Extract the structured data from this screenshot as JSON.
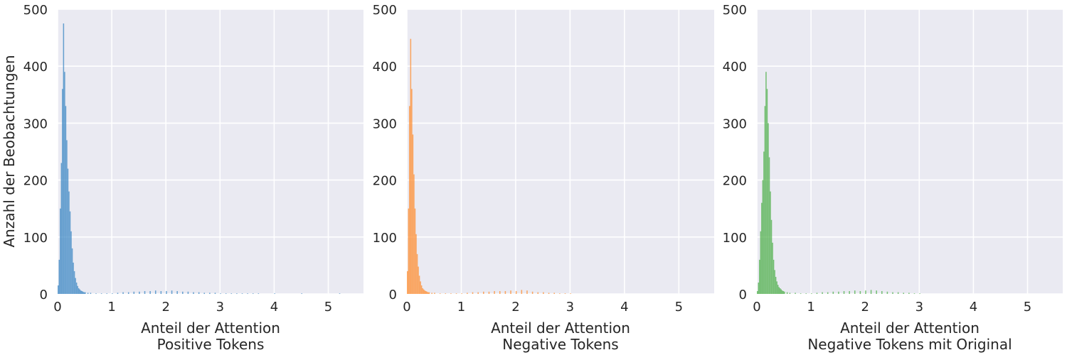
{
  "figure": {
    "ylabel": "Anzahl der Beobachtungen"
  },
  "chart_data": [
    {
      "type": "histogram",
      "xlabel_line1": "Anteil der Attention",
      "xlabel_line2": "Positive Tokens",
      "xlim": [
        0,
        5.65
      ],
      "ylim": [
        0,
        500
      ],
      "xticks": [
        0,
        1,
        2,
        3,
        4,
        5
      ],
      "yticks": [
        0,
        100,
        200,
        300,
        400,
        500
      ],
      "grid": true,
      "color": "#3a86c3",
      "bins": [
        [
          0.0,
          15
        ],
        [
          0.02,
          60
        ],
        [
          0.04,
          150
        ],
        [
          0.06,
          230
        ],
        [
          0.08,
          360
        ],
        [
          0.1,
          475
        ],
        [
          0.12,
          390
        ],
        [
          0.14,
          330
        ],
        [
          0.16,
          270
        ],
        [
          0.18,
          220
        ],
        [
          0.2,
          180
        ],
        [
          0.22,
          145
        ],
        [
          0.24,
          110
        ],
        [
          0.26,
          80
        ],
        [
          0.28,
          55
        ],
        [
          0.3,
          40
        ],
        [
          0.32,
          28
        ],
        [
          0.34,
          20
        ],
        [
          0.36,
          14
        ],
        [
          0.38,
          10
        ],
        [
          0.4,
          8
        ],
        [
          0.42,
          6
        ],
        [
          0.44,
          5
        ],
        [
          0.46,
          4
        ],
        [
          0.48,
          3
        ],
        [
          0.5,
          3
        ],
        [
          0.55,
          2
        ],
        [
          0.6,
          2
        ],
        [
          0.7,
          1
        ],
        [
          0.8,
          1
        ],
        [
          0.9,
          1
        ],
        [
          1.0,
          1
        ],
        [
          1.1,
          2
        ],
        [
          1.2,
          3
        ],
        [
          1.3,
          3
        ],
        [
          1.4,
          4
        ],
        [
          1.5,
          4
        ],
        [
          1.6,
          5
        ],
        [
          1.7,
          5
        ],
        [
          1.8,
          6
        ],
        [
          1.9,
          5
        ],
        [
          2.0,
          5
        ],
        [
          2.1,
          6
        ],
        [
          2.2,
          5
        ],
        [
          2.3,
          4
        ],
        [
          2.4,
          4
        ],
        [
          2.5,
          3
        ],
        [
          2.6,
          3
        ],
        [
          2.7,
          2
        ],
        [
          2.8,
          2
        ],
        [
          2.9,
          2
        ],
        [
          3.0,
          1
        ],
        [
          3.1,
          1
        ],
        [
          3.2,
          1
        ],
        [
          3.3,
          1
        ],
        [
          3.4,
          1
        ],
        [
          3.5,
          1
        ],
        [
          3.6,
          1
        ],
        [
          3.7,
          1
        ],
        [
          4.0,
          1
        ],
        [
          4.5,
          1
        ],
        [
          5.2,
          1
        ]
      ]
    },
    {
      "type": "histogram",
      "xlabel_line1": "Anteil der Attention",
      "xlabel_line2": "Negative Tokens",
      "xlim": [
        0,
        5.65
      ],
      "ylim": [
        0,
        500
      ],
      "xticks": [
        0,
        1,
        2,
        3,
        4,
        5
      ],
      "yticks": [
        0,
        100,
        200,
        300,
        400,
        500
      ],
      "grid": true,
      "color": "#ff8c2e",
      "bins": [
        [
          0.0,
          40
        ],
        [
          0.02,
          150
        ],
        [
          0.04,
          330
        ],
        [
          0.06,
          448
        ],
        [
          0.08,
          360
        ],
        [
          0.1,
          280
        ],
        [
          0.12,
          210
        ],
        [
          0.14,
          150
        ],
        [
          0.16,
          105
        ],
        [
          0.18,
          70
        ],
        [
          0.2,
          48
        ],
        [
          0.22,
          32
        ],
        [
          0.24,
          22
        ],
        [
          0.26,
          15
        ],
        [
          0.28,
          10
        ],
        [
          0.3,
          8
        ],
        [
          0.32,
          6
        ],
        [
          0.34,
          5
        ],
        [
          0.36,
          4
        ],
        [
          0.38,
          3
        ],
        [
          0.4,
          3
        ],
        [
          0.45,
          2
        ],
        [
          0.5,
          2
        ],
        [
          0.6,
          1
        ],
        [
          0.7,
          1
        ],
        [
          0.8,
          1
        ],
        [
          0.9,
          1
        ],
        [
          1.0,
          1
        ],
        [
          1.1,
          2
        ],
        [
          1.2,
          3
        ],
        [
          1.3,
          3
        ],
        [
          1.4,
          4
        ],
        [
          1.5,
          4
        ],
        [
          1.6,
          5
        ],
        [
          1.7,
          5
        ],
        [
          1.8,
          5
        ],
        [
          1.9,
          6
        ],
        [
          2.0,
          5
        ],
        [
          2.1,
          7
        ],
        [
          2.2,
          6
        ],
        [
          2.3,
          4
        ],
        [
          2.4,
          3
        ],
        [
          2.5,
          3
        ],
        [
          2.6,
          2
        ],
        [
          2.7,
          2
        ],
        [
          2.8,
          1
        ],
        [
          2.9,
          1
        ],
        [
          3.0,
          1
        ]
      ]
    },
    {
      "type": "histogram",
      "xlabel_line1": "Anteil der Attention",
      "xlabel_line2": "Negative Tokens mit Original",
      "xlim": [
        0,
        5.65
      ],
      "ylim": [
        0,
        500
      ],
      "xticks": [
        0,
        1,
        2,
        3,
        4,
        5
      ],
      "yticks": [
        0,
        100,
        200,
        300,
        400,
        500
      ],
      "grid": true,
      "color": "#4daf4a",
      "bins": [
        [
          0.0,
          5
        ],
        [
          0.02,
          20
        ],
        [
          0.04,
          60
        ],
        [
          0.06,
          110
        ],
        [
          0.08,
          160
        ],
        [
          0.1,
          200
        ],
        [
          0.12,
          250
        ],
        [
          0.14,
          330
        ],
        [
          0.16,
          390
        ],
        [
          0.18,
          360
        ],
        [
          0.2,
          300
        ],
        [
          0.22,
          240
        ],
        [
          0.24,
          180
        ],
        [
          0.26,
          130
        ],
        [
          0.28,
          90
        ],
        [
          0.3,
          60
        ],
        [
          0.32,
          42
        ],
        [
          0.34,
          30
        ],
        [
          0.36,
          22
        ],
        [
          0.38,
          16
        ],
        [
          0.4,
          12
        ],
        [
          0.42,
          10
        ],
        [
          0.44,
          8
        ],
        [
          0.46,
          6
        ],
        [
          0.48,
          5
        ],
        [
          0.5,
          4
        ],
        [
          0.55,
          3
        ],
        [
          0.6,
          2
        ],
        [
          0.7,
          2
        ],
        [
          0.8,
          1
        ],
        [
          0.9,
          1
        ],
        [
          1.0,
          1
        ],
        [
          1.1,
          2
        ],
        [
          1.2,
          3
        ],
        [
          1.3,
          3
        ],
        [
          1.4,
          4
        ],
        [
          1.5,
          4
        ],
        [
          1.6,
          5
        ],
        [
          1.7,
          5
        ],
        [
          1.8,
          6
        ],
        [
          1.9,
          5
        ],
        [
          2.0,
          6
        ],
        [
          2.1,
          7
        ],
        [
          2.2,
          6
        ],
        [
          2.3,
          5
        ],
        [
          2.4,
          4
        ],
        [
          2.5,
          3
        ],
        [
          2.6,
          3
        ],
        [
          2.7,
          2
        ],
        [
          2.8,
          2
        ],
        [
          2.9,
          1
        ],
        [
          3.0,
          1
        ]
      ]
    }
  ]
}
